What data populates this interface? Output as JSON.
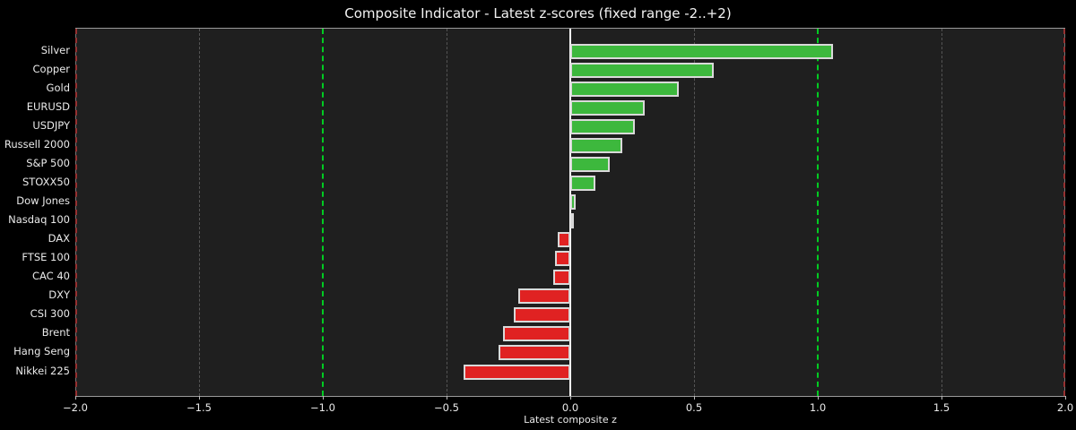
{
  "chart_data": {
    "type": "bar",
    "orientation": "horizontal",
    "title": "Composite Indicator - Latest z-scores (fixed range -2..+2)",
    "xlabel": "Latest composite z",
    "xlim": [
      -2,
      2
    ],
    "x_ticks": [
      -2.0,
      -1.5,
      -1.0,
      -0.5,
      0.0,
      0.5,
      1.0,
      1.5,
      2.0
    ],
    "x_tick_labels": [
      "−2.0",
      "−1.5",
      "−1.0",
      "−0.5",
      "0.0",
      "0.5",
      "1.0",
      "1.5",
      "2.0"
    ],
    "categories": [
      "Silver",
      "Copper",
      "Gold",
      "EURUSD",
      "USDJPY",
      "Russell 2000",
      "S&P 500",
      "STOXX50",
      "Dow Jones",
      "Nasdaq 100",
      "DAX",
      "FTSE 100",
      "CAC 40",
      "DXY",
      "CSI 300",
      "Brent",
      "Hang Seng",
      "Nikkei 225"
    ],
    "values": [
      1.06,
      0.58,
      0.44,
      0.3,
      0.26,
      0.21,
      0.16,
      0.1,
      0.02,
      0.0,
      -0.05,
      -0.06,
      -0.07,
      -0.21,
      -0.23,
      -0.27,
      -0.29,
      -0.43
    ],
    "gridlines_dashed_gray": [
      -1.5,
      -0.5,
      0.5,
      1.5
    ],
    "threshold_lines_green": [
      -1.0,
      1.0
    ],
    "threshold_lines_red": [
      -2.0,
      2.0
    ],
    "zero_line": 0.0,
    "grid": true,
    "legend": false,
    "colors": {
      "positive_bar": "#3db83d",
      "negative_bar": "#e02222",
      "bar_edge": "#d9d9d9",
      "threshold_green": "#00cc22",
      "threshold_red": "#963030",
      "zero_line": "#ffffff",
      "gridline": "#555555",
      "plot_background": "#1f1f1f",
      "figure_background": "#000000",
      "text": "#f0f0f0"
    }
  }
}
